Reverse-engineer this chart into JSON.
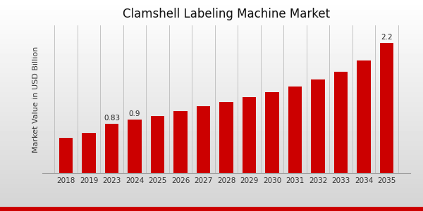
{
  "title": "Clamshell Labeling Machine Market",
  "ylabel": "Market Value in USD Billion",
  "categories": [
    "2018",
    "2019",
    "2023",
    "2024",
    "2025",
    "2026",
    "2027",
    "2028",
    "2029",
    "2030",
    "2031",
    "2032",
    "2033",
    "2034",
    "2035"
  ],
  "values": [
    0.6,
    0.68,
    0.83,
    0.9,
    0.97,
    1.05,
    1.13,
    1.2,
    1.28,
    1.37,
    1.47,
    1.58,
    1.72,
    1.9,
    2.2
  ],
  "bar_color": "#CC0000",
  "label_values": {
    "2023": "0.83",
    "2024": "0.9",
    "2035": "2.2"
  },
  "bg_top": "#f5f5f5",
  "bg_bottom": "#d8d8d8",
  "ylim": [
    0,
    2.5
  ],
  "title_fontsize": 12,
  "axis_fontsize": 8,
  "tick_fontsize": 7.5,
  "bar_width": 0.6,
  "red_line_color": "#CC0000"
}
